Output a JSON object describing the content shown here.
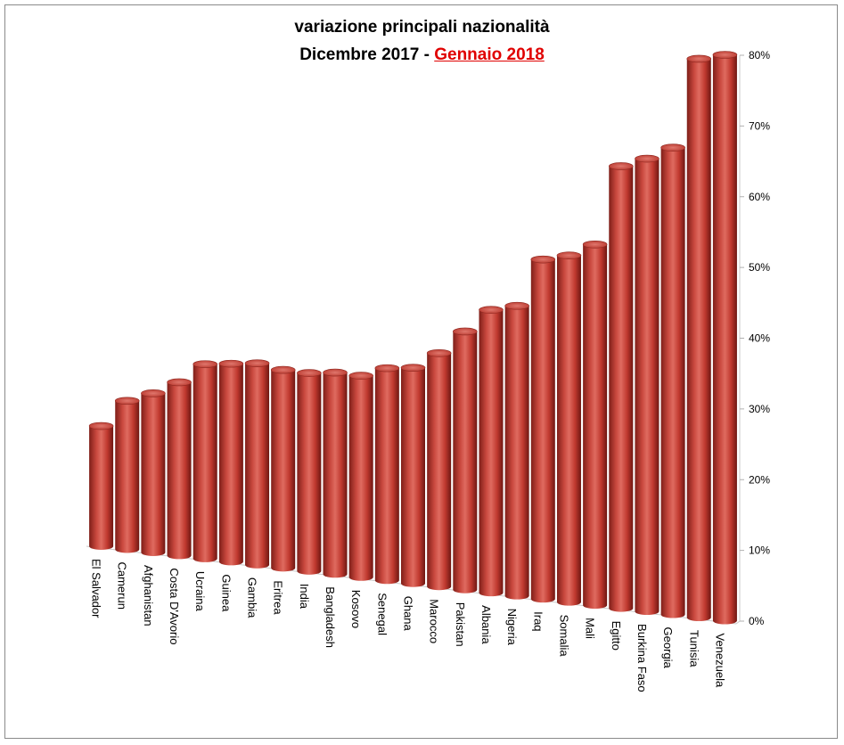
{
  "chart_data": {
    "type": "bar",
    "title_line1": "variazione principali nazionalità",
    "title_line2_prefix": "Dicembre 2017 - ",
    "title_line2_highlight": "Gennaio 2018",
    "categories": [
      "El Salvador",
      "Camerun",
      "Afghanistan",
      "Costa D'Avorio",
      "Ucraina",
      "Guinea",
      "Gambia",
      "Eritrea",
      "India",
      "Bangladesh",
      "Kosovo",
      "Senegal",
      "Ghana",
      "Marocco",
      "Pakistan",
      "Albania",
      "Nigeria",
      "Iraq",
      "Somalia",
      "Mali",
      "Egitto",
      "Burkina Faso",
      "Georgia",
      "Tunisia",
      "Venezuela"
    ],
    "values": [
      17,
      21,
      22.5,
      24.5,
      27.5,
      28,
      28.5,
      28,
      28,
      28.5,
      28.5,
      30,
      30.5,
      33,
      36.5,
      40,
      41,
      48,
      49,
      51,
      62.5,
      64,
      66,
      79,
      80
    ],
    "y_ticks": [
      "0%",
      "10%",
      "20%",
      "30%",
      "40%",
      "50%",
      "60%",
      "70%",
      "80%"
    ],
    "ylim": [
      0,
      80
    ],
    "bar_color": "#c0392b",
    "highlight_color": "#e00000"
  }
}
